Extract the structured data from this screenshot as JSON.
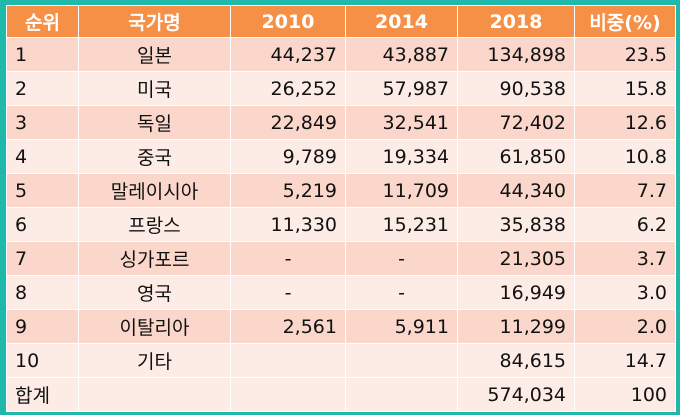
{
  "columns": [
    "순위",
    "국가명",
    "2010",
    "2014",
    "2018",
    "비중(%)"
  ],
  "rows": [
    {
      "rank": "1",
      "country": "일본",
      "y2010": "44,237",
      "y2014": "43,887",
      "y2018": "134,898",
      "share": "23.5"
    },
    {
      "rank": "2",
      "country": "미국",
      "y2010": "26,252",
      "y2014": "57,987",
      "y2018": "90,538",
      "share": "15.8"
    },
    {
      "rank": "3",
      "country": "독일",
      "y2010": "22,849",
      "y2014": "32,541",
      "y2018": "72,402",
      "share": "12.6"
    },
    {
      "rank": "4",
      "country": "중국",
      "y2010": "9,789",
      "y2014": "19,334",
      "y2018": "61,850",
      "share": "10.8"
    },
    {
      "rank": "5",
      "country": "말레이시아",
      "y2010": "5,219",
      "y2014": "11,709",
      "y2018": "44,340",
      "share": "7.7"
    },
    {
      "rank": "6",
      "country": "프랑스",
      "y2010": "11,330",
      "y2014": "15,231",
      "y2018": "35,838",
      "share": "6.2"
    },
    {
      "rank": "7",
      "country": "싱가포르",
      "y2010": "-",
      "y2014": "-",
      "y2018": "21,305",
      "share": "3.7"
    },
    {
      "rank": "8",
      "country": "영국",
      "y2010": "-",
      "y2014": "-",
      "y2018": "16,949",
      "share": "3.0"
    },
    {
      "rank": "9",
      "country": "이탈리아",
      "y2010": "2,561",
      "y2014": "5,911",
      "y2018": "11,299",
      "share": "2.0"
    },
    {
      "rank": "10",
      "country": "기타",
      "y2010": "",
      "y2014": "",
      "y2018": "84,615",
      "share": "14.7"
    }
  ],
  "total": {
    "label": "합계",
    "y2018": "574,034",
    "share": "100"
  },
  "colors": {
    "frame": "#1fb8ab",
    "header": "#f69047",
    "row_dark": "#fbd7cb",
    "row_light": "#fdebe5"
  }
}
